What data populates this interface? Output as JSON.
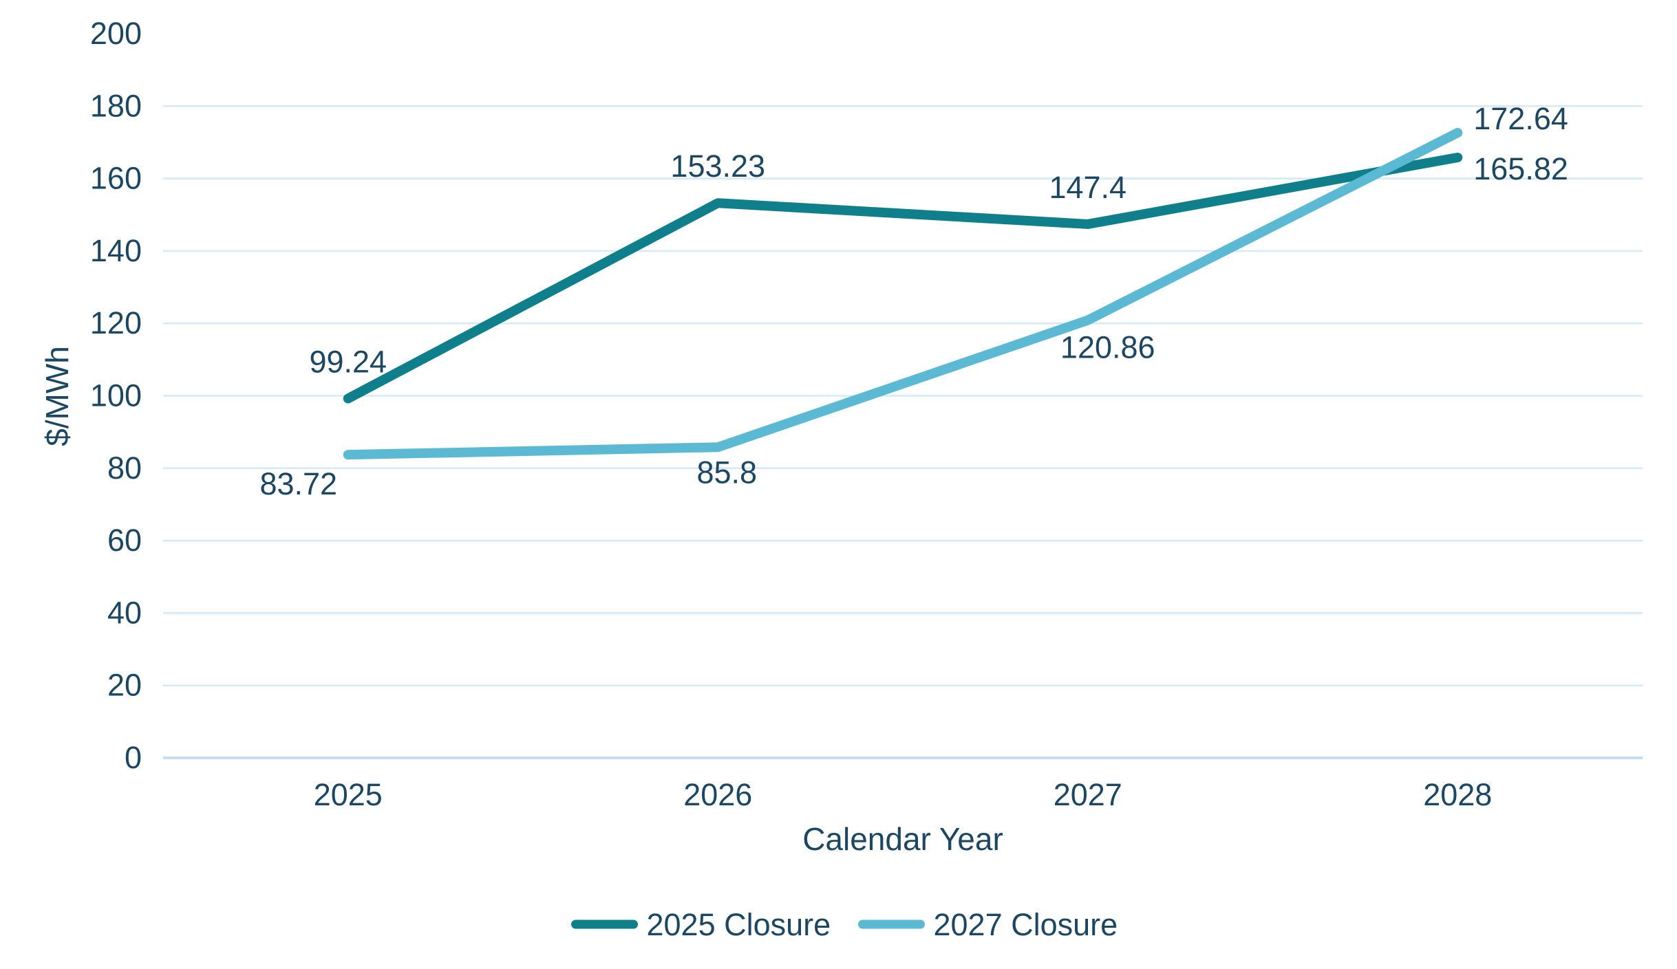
{
  "colors": {
    "background": "#ffffff",
    "text": "#1c4763",
    "gridline": "#d7e8f7",
    "axis_line": "#c5dff1",
    "series_2025_closure": "#0f7f8c",
    "series_2027_closure": "#5bb9d4"
  },
  "chart_data": {
    "type": "line",
    "title": "",
    "categories": [
      "2025",
      "2026",
      "2027",
      "2028"
    ],
    "series": [
      {
        "name": "2025 Closure",
        "color": "#0f7f8c",
        "values": [
          99.24,
          153.23,
          147.4,
          165.82
        ]
      },
      {
        "name": "2027 Closure",
        "color": "#5bb9d4",
        "values": [
          83.72,
          85.8,
          120.86,
          172.64
        ]
      }
    ],
    "xlabel": "Calendar Year",
    "ylabel": "$/MWh",
    "ylim": [
      0,
      200
    ],
    "yticks": [
      0,
      20,
      40,
      60,
      80,
      100,
      120,
      140,
      160,
      180,
      200
    ],
    "grid": true,
    "legend_position": "bottom",
    "data_labels": true,
    "layout": {
      "label_placements": [
        [
          "above",
          "above",
          "above",
          "right-below"
        ],
        [
          "below-left",
          "below",
          "below-right",
          "right-above"
        ]
      ]
    }
  }
}
